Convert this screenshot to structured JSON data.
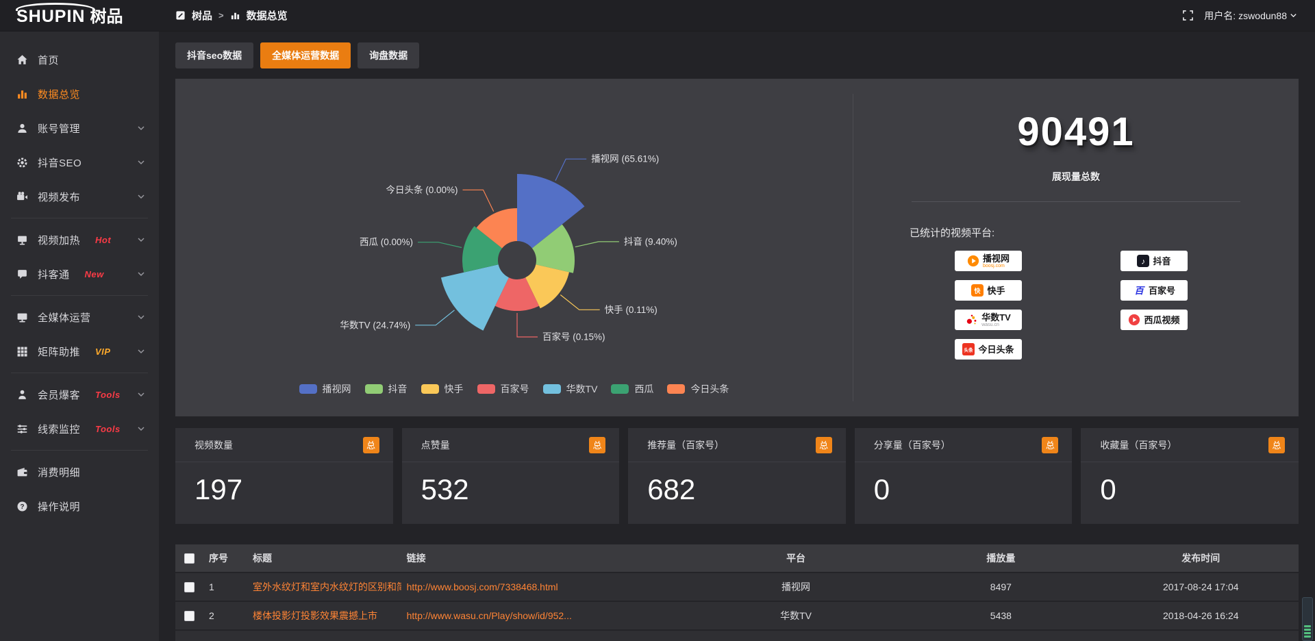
{
  "app": {
    "logo_en": "SHUPIN",
    "logo_cn": "树品"
  },
  "topbar": {
    "breadcrumb_root": "树品",
    "breadcrumb_sep": ">",
    "breadcrumb_current": "数据总览",
    "username_prefix": "用户名:",
    "username": "zswodun88"
  },
  "sidebar": {
    "items": [
      {
        "label": "首页",
        "icon": "home",
        "active": false,
        "chevron": false
      },
      {
        "label": "数据总览",
        "icon": "bar-chart",
        "active": true,
        "chevron": false
      },
      {
        "label": "账号管理",
        "icon": "user",
        "chevron": true
      },
      {
        "label": "抖音SEO",
        "icon": "gear",
        "chevron": true
      },
      {
        "label": "视频发布",
        "icon": "video",
        "chevron": true,
        "divider_after": true
      },
      {
        "label": "视频加热",
        "icon": "screen",
        "badge": "Hot",
        "badge_color": "#fb3b46",
        "chevron": true
      },
      {
        "label": "抖客通",
        "icon": "chat",
        "badge": "New",
        "badge_color": "#fb3b46",
        "chevron": true,
        "divider_after": true
      },
      {
        "label": "全媒体运营",
        "icon": "monitor",
        "chevron": true
      },
      {
        "label": "矩阵助推",
        "icon": "grid",
        "badge": "VIP",
        "badge_color": "#ffaa2b",
        "chevron": true,
        "divider_after": true
      },
      {
        "label": "会员爆客",
        "icon": "member",
        "badge": "Tools",
        "badge_color": "#fb3b46",
        "chevron": true
      },
      {
        "label": "线索监控",
        "icon": "sliders",
        "badge": "Tools",
        "badge_color": "#fb3b46",
        "chevron": true,
        "divider_after": true
      },
      {
        "label": "消费明细",
        "icon": "wallet",
        "chevron": false
      },
      {
        "label": "操作说明",
        "icon": "help",
        "chevron": false
      }
    ]
  },
  "tabs": [
    {
      "label": "抖音seo数据",
      "active": false
    },
    {
      "label": "全媒体运营数据",
      "active": true
    },
    {
      "label": "询盘数据",
      "active": false
    }
  ],
  "chart_data": {
    "type": "pie",
    "subtype": "nightingale-rose",
    "categories": [
      "播视网",
      "抖音",
      "快手",
      "百家号",
      "华数TV",
      "西瓜",
      "今日头条"
    ],
    "values_percent": [
      65.61,
      9.4,
      0.11,
      0.15,
      24.74,
      0.0,
      0.0
    ],
    "labels": [
      "播视网 (65.61%)",
      "抖音 (9.40%)",
      "快手 (0.11%)",
      "百家号 (0.15%)",
      "华数TV (24.74%)",
      "西瓜 (0.00%)",
      "今日头条 (0.00%)"
    ],
    "colors": [
      "#5470c6",
      "#91cc75",
      "#fac858",
      "#ee6666",
      "#73c0de",
      "#3ba272",
      "#fc8452"
    ],
    "outer_radii_hint": [
      126,
      84,
      78,
      74,
      114,
      80,
      76
    ],
    "inner_radius_hint": 28,
    "legend": [
      "播视网",
      "抖音",
      "快手",
      "百家号",
      "华数TV",
      "西瓜",
      "今日头条"
    ],
    "legend_position": "bottom",
    "total": {
      "value": "90491",
      "label": "展现量总数"
    }
  },
  "summary": {
    "total_value": "90491",
    "total_label": "展现量总数",
    "platforms_label": "已统计的视频平台:",
    "platforms": [
      {
        "name": "播视网",
        "sub": "boosj.com",
        "sub_color": "#ff8a00",
        "logo": "boosj"
      },
      {
        "name": "抖音",
        "logo": "douyin"
      },
      {
        "name": "快手",
        "logo": "kuaishou"
      },
      {
        "name": "百家号",
        "logo": "baijia"
      },
      {
        "name": "华数TV",
        "sub": "wasu.cn",
        "sub_color": "#9a9a9e",
        "logo": "wasu"
      },
      {
        "name": "西瓜视频",
        "logo": "xigua"
      },
      {
        "name": "今日头条",
        "logo": "toutiao"
      }
    ]
  },
  "stat_cards": [
    {
      "title": "视频数量",
      "badge": "总",
      "value": "197"
    },
    {
      "title": "点赞量",
      "badge": "总",
      "value": "532"
    },
    {
      "title": "推荐量（百家号）",
      "badge": "总",
      "value": "682"
    },
    {
      "title": "分享量（百家号）",
      "badge": "总",
      "value": "0"
    },
    {
      "title": "收藏量（百家号）",
      "badge": "总",
      "value": "0"
    }
  ],
  "table": {
    "columns": [
      "序号",
      "标题",
      "链接",
      "平台",
      "播放量",
      "发布时间"
    ],
    "rows": [
      {
        "index": "1",
        "title": "室外水纹灯和室内水纹灯的区别和简介",
        "link": "http://www.boosj.com/7338468.html",
        "platform": "播视网",
        "views": "8497",
        "time": "2017-08-24 17:04"
      },
      {
        "index": "2",
        "title": "楼体投影灯投影效果震撼上市",
        "link": "http://www.wasu.cn/Play/show/id/952...",
        "platform": "华数TV",
        "views": "5438",
        "time": "2018-04-26 16:24"
      },
      {
        "index": "",
        "title": "",
        "link": "",
        "platform": "",
        "views": "",
        "time": ""
      }
    ]
  }
}
